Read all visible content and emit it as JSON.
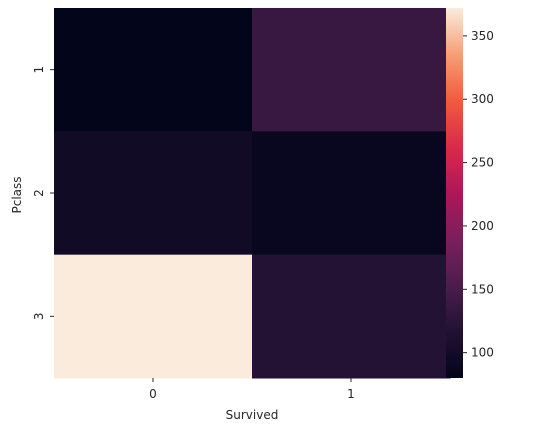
{
  "chart_data": {
    "type": "heatmap",
    "title": "",
    "xlabel": "Survived",
    "ylabel": "Pclass",
    "x_categories": [
      "0",
      "1"
    ],
    "y_categories": [
      "1",
      "2",
      "3"
    ],
    "values": [
      [
        80,
        136
      ],
      [
        97,
        87
      ],
      [
        372,
        119
      ]
    ],
    "colorbar": {
      "vmin": 80,
      "vmax": 372,
      "ticks": [
        100,
        150,
        200,
        250,
        300,
        350
      ],
      "colormap": "rocket"
    }
  }
}
